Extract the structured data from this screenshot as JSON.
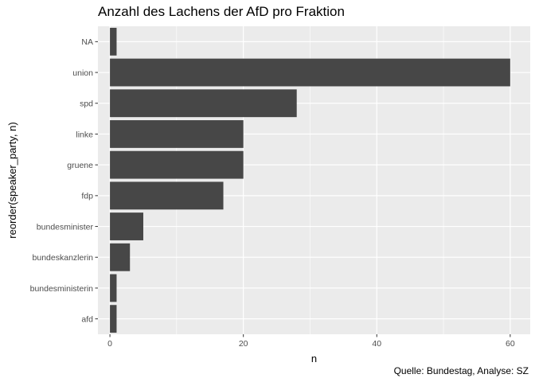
{
  "chart_data": {
    "type": "bar",
    "orientation": "horizontal",
    "title": "Anzahl des Lachens der AfD pro Fraktion",
    "xlabel": "n",
    "ylabel": "reorder(speaker_party, n)",
    "caption": "Quelle: Bundestag, Analyse: SZ",
    "categories": [
      "NA",
      "union",
      "spd",
      "linke",
      "gruene",
      "fdp",
      "bundesminister",
      "bundeskanzlerin",
      "bundesministerin",
      "afd"
    ],
    "values": [
      1,
      60,
      28,
      20,
      20,
      17,
      5,
      3,
      1,
      1
    ],
    "xlim": [
      -1.8,
      63
    ],
    "xticks": [
      0,
      20,
      40,
      60
    ],
    "xtick_labels": [
      "0",
      "20",
      "40",
      "60"
    ],
    "grid": true,
    "legend": "none",
    "colors": {
      "bar": "#474747",
      "panel": "#ebebeb",
      "grid_major": "#ffffff",
      "tick_text": "#4d4d4d"
    }
  }
}
